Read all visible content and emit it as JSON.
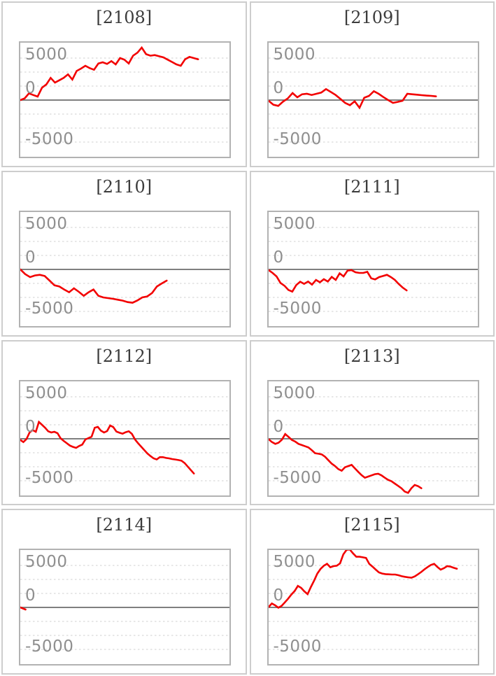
{
  "style": {
    "background": "#ffffff",
    "card_border_color": "#cdcdcd",
    "plot_border_color": "#b2b2b2",
    "title_color": "#3c3c3c",
    "tick_label_color": "#8f8f8f",
    "grid_color": "#cfcfcf",
    "zero_line_color": "#7f7f7f",
    "line_color": "#f20000"
  },
  "axis": {
    "tick_labels": [
      "5000",
      "0",
      "-5000"
    ],
    "gridlines_at": [
      5000,
      3333,
      1667,
      0,
      -1667,
      -3333,
      -5000
    ],
    "ylim": [
      -6900,
      6900
    ]
  },
  "chart_data": [
    {
      "type": "line",
      "machine": "2108",
      "title": "[2108]",
      "ylim": [
        -6900,
        6900
      ],
      "yticks": [
        5000,
        0,
        -5000
      ],
      "x_extent": 0.85,
      "values": [
        0,
        200,
        800,
        600,
        420,
        1470,
        1860,
        2640,
        2080,
        2360,
        2640,
        3060,
        2440,
        3470,
        3750,
        4080,
        3810,
        3610,
        4360,
        4500,
        4310,
        4640,
        4250,
        5000,
        4810,
        4360,
        5280,
        5640,
        6250,
        5470,
        5280,
        5360,
        5220,
        5080,
        4810,
        4530,
        4250,
        4080,
        4860,
        5140,
        5000,
        4860
      ]
    },
    {
      "type": "line",
      "machine": "2109",
      "title": "[2109]",
      "ylim": [
        -6900,
        6900
      ],
      "yticks": [
        5000,
        0,
        -5000
      ],
      "x_extent": 0.8,
      "values": [
        -80,
        -560,
        -690,
        -190,
        190,
        830,
        330,
        690,
        750,
        610,
        750,
        890,
        1310,
        970,
        610,
        140,
        -330,
        -610,
        -140,
        -920,
        280,
        500,
        1060,
        750,
        360,
        0,
        -330,
        -220,
        -80,
        750,
        690,
        640,
        580,
        530,
        500,
        440
      ]
    },
    {
      "type": "line",
      "machine": "2110",
      "title": "[2110]",
      "ylim": [
        -6900,
        6900
      ],
      "yticks": [
        5000,
        0,
        -5000
      ],
      "x_extent": 0.7,
      "values": [
        0,
        -560,
        -920,
        -720,
        -640,
        -780,
        -1330,
        -1890,
        -2030,
        -2390,
        -2720,
        -2250,
        -2670,
        -3140,
        -2720,
        -2390,
        -3140,
        -3330,
        -3420,
        -3500,
        -3610,
        -3720,
        -3890,
        -3970,
        -3690,
        -3330,
        -3220,
        -2810,
        -2030,
        -1670,
        -1330
      ]
    },
    {
      "type": "line",
      "machine": "2111",
      "title": "[2111]",
      "ylim": [
        -6900,
        6900
      ],
      "yticks": [
        5000,
        0,
        -5000
      ],
      "x_extent": 0.66,
      "values": [
        -80,
        -420,
        -830,
        -1610,
        -1940,
        -2440,
        -2640,
        -1860,
        -1470,
        -1720,
        -1440,
        -1810,
        -1250,
        -1530,
        -1170,
        -1440,
        -890,
        -1250,
        -470,
        -830,
        -140,
        -80,
        -330,
        -420,
        -420,
        -280,
        -1060,
        -1190,
        -920,
        -780,
        -640,
        -920,
        -1250,
        -1750,
        -2170,
        -2500
      ]
    },
    {
      "type": "line",
      "machine": "2112",
      "title": "[2112]",
      "ylim": [
        -6900,
        6900
      ],
      "yticks": [
        5000,
        0,
        -5000
      ],
      "x_extent": 0.83,
      "values": [
        -140,
        -390,
        -30,
        750,
        1030,
        830,
        2000,
        1670,
        1310,
        890,
        750,
        830,
        670,
        60,
        -250,
        -530,
        -810,
        -970,
        -1080,
        -860,
        -690,
        -80,
        80,
        250,
        1310,
        1420,
        970,
        750,
        920,
        1580,
        1390,
        860,
        720,
        610,
        780,
        890,
        580,
        -80,
        -530,
        -940,
        -1360,
        -1750,
        -2060,
        -2330,
        -2470,
        -2190,
        -2190,
        -2280,
        -2330,
        -2420,
        -2470,
        -2530,
        -2610,
        -2890,
        -3310,
        -3720,
        -4140
      ]
    },
    {
      "type": "line",
      "machine": "2113",
      "title": "[2113]",
      "ylim": [
        -6900,
        6900
      ],
      "yticks": [
        5000,
        0,
        -5000
      ],
      "x_extent": 0.73,
      "values": [
        -60,
        -390,
        -610,
        -470,
        -110,
        560,
        220,
        -140,
        -330,
        -610,
        -750,
        -890,
        -1030,
        -1360,
        -1720,
        -1780,
        -1860,
        -2140,
        -2560,
        -2970,
        -3250,
        -3610,
        -3810,
        -3390,
        -3250,
        -3110,
        -3530,
        -3940,
        -4330,
        -4640,
        -4500,
        -4360,
        -4220,
        -4170,
        -4360,
        -4640,
        -4890,
        -5060,
        -5330,
        -5610,
        -5890,
        -6280,
        -6440,
        -5890,
        -5500,
        -5640,
        -5890
      ]
    },
    {
      "type": "line",
      "machine": "2114",
      "title": "[2114]",
      "ylim": [
        -6900,
        6900
      ],
      "yticks": [
        5000,
        0,
        -5000
      ],
      "x_extent": 0.025,
      "values": [
        0,
        -250
      ]
    },
    {
      "type": "line",
      "machine": "2115",
      "title": "[2115]",
      "ylim": [
        -6900,
        6900
      ],
      "yticks": [
        5000,
        0,
        -5000
      ],
      "x_extent": 0.9,
      "values": [
        60,
        470,
        250,
        -30,
        190,
        610,
        1030,
        1530,
        1940,
        2560,
        2330,
        1920,
        1580,
        2420,
        3190,
        4030,
        4580,
        4970,
        5190,
        4780,
        4920,
        4970,
        5250,
        6310,
        6860,
        6900,
        6440,
        6030,
        6030,
        5970,
        5890,
        5190,
        4860,
        4500,
        4170,
        4030,
        3970,
        3940,
        3920,
        3920,
        3830,
        3720,
        3640,
        3580,
        3530,
        3690,
        3940,
        4220,
        4530,
        4810,
        5060,
        5190,
        4810,
        4500,
        4670,
        4920,
        4860,
        4720,
        4610
      ]
    }
  ]
}
